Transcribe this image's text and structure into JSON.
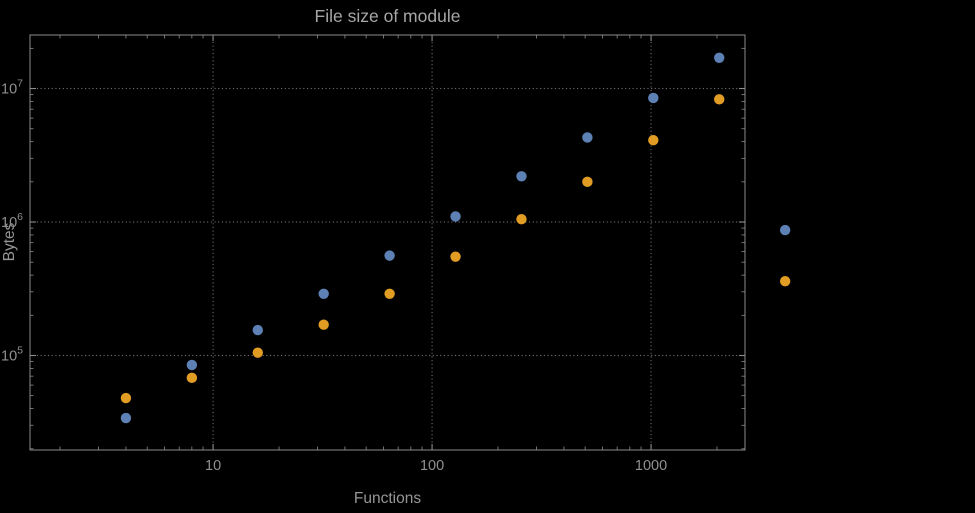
{
  "chart": {
    "title": "File size of module",
    "xlabel": "Functions",
    "ylabel": "Bytes"
  },
  "chart_data": {
    "type": "scatter",
    "title": "File size of module",
    "xlabel": "Functions",
    "ylabel": "Bytes",
    "x_scale": "log10",
    "y_scale": "log10",
    "x": [
      4,
      8,
      16,
      32,
      64,
      128,
      256,
      512,
      1024,
      2048,
      4096
    ],
    "series": [
      {
        "name": "series-1-blue",
        "color": "#5e81b5",
        "values": [
          34000,
          85000,
          155000,
          290000,
          560000,
          1100000,
          2200000,
          4300000,
          8500000,
          17000000,
          870000
        ]
      },
      {
        "name": "series-2-orange",
        "color": "#e19c24",
        "values": [
          48000,
          68000,
          105000,
          170000,
          290000,
          550000,
          1050000,
          2000000,
          4100000,
          8300000,
          360000
        ]
      }
    ],
    "x_ticks": [
      10,
      100,
      1000
    ],
    "x_tick_labels": [
      "10",
      "100",
      "1000"
    ],
    "y_ticks": [
      100000,
      1000000,
      10000000
    ],
    "y_tick_labels": [
      {
        "base": "10",
        "exp": "5"
      },
      {
        "base": "10",
        "exp": "6"
      },
      {
        "base": "10",
        "exp": "7"
      }
    ],
    "xlim_log10": [
      0.164,
      3.429
    ],
    "ylim_log10": [
      4.292,
      7.401
    ],
    "grid": "dotted-major",
    "legend": "none"
  },
  "style": {
    "background": "#000000",
    "point_blue": "#5e81b5",
    "point_orange": "#e19c24",
    "frame_color": "#8c8c8c",
    "grid_color": "#6f6f6f",
    "tick_label_color": "#909090",
    "axis_label_color": "#969696",
    "title_color": "#a6a6a6"
  }
}
